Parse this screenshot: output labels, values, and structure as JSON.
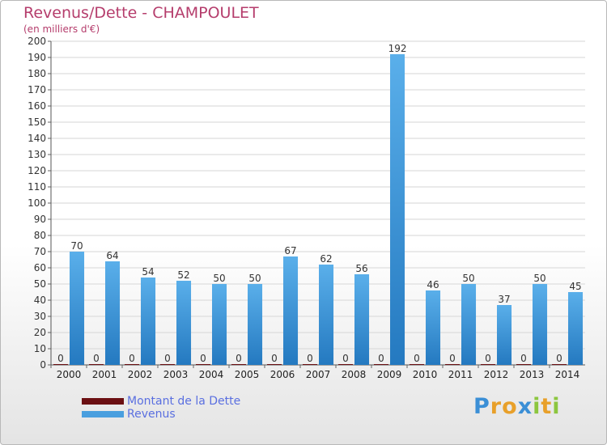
{
  "header": {
    "title": "Revenus/Dette - CHAMPOULET",
    "subtitle": "(en milliers d'€)"
  },
  "colors": {
    "revenus": "#4a9fdf",
    "revenus_dark": "#2479c0",
    "dette": "#6b0f12",
    "title": "#b53d6c",
    "legend_text": "#5a6fe0"
  },
  "chart_data": {
    "type": "bar",
    "title": "Revenus/Dette - CHAMPOULET",
    "subtitle": "(en milliers d'€)",
    "xlabel": "",
    "ylabel": "",
    "ylim": [
      0,
      200
    ],
    "ytick_step": 10,
    "grid": true,
    "legend_position": "bottom-left",
    "categories": [
      "2000",
      "2001",
      "2002",
      "2003",
      "2004",
      "2005",
      "2006",
      "2007",
      "2008",
      "2009",
      "2010",
      "2011",
      "2012",
      "2013",
      "2014"
    ],
    "series": [
      {
        "name": "Montant de la Dette",
        "color": "#6b0f12",
        "values": [
          0,
          0,
          0,
          0,
          0,
          0,
          0,
          0,
          0,
          0,
          0,
          0,
          0,
          0,
          0
        ]
      },
      {
        "name": "Revenus",
        "color": "#4a9fdf",
        "values": [
          70,
          64,
          54,
          52,
          50,
          50,
          67,
          62,
          56,
          192,
          46,
          50,
          37,
          50,
          45
        ]
      }
    ]
  },
  "legend": {
    "items": [
      {
        "label": "Montant de la Dette",
        "color": "#6b0f12"
      },
      {
        "label": "Revenus",
        "color": "#4a9fdf"
      }
    ]
  },
  "logo": {
    "letters": [
      "P",
      "r",
      "o",
      "x",
      "i",
      "t",
      "i"
    ],
    "colors": [
      "#3b8fd6",
      "#e8a02a",
      "#e8a02a",
      "#3b8fd6",
      "#8cc63f",
      "#e8a02a",
      "#8cc63f"
    ]
  }
}
